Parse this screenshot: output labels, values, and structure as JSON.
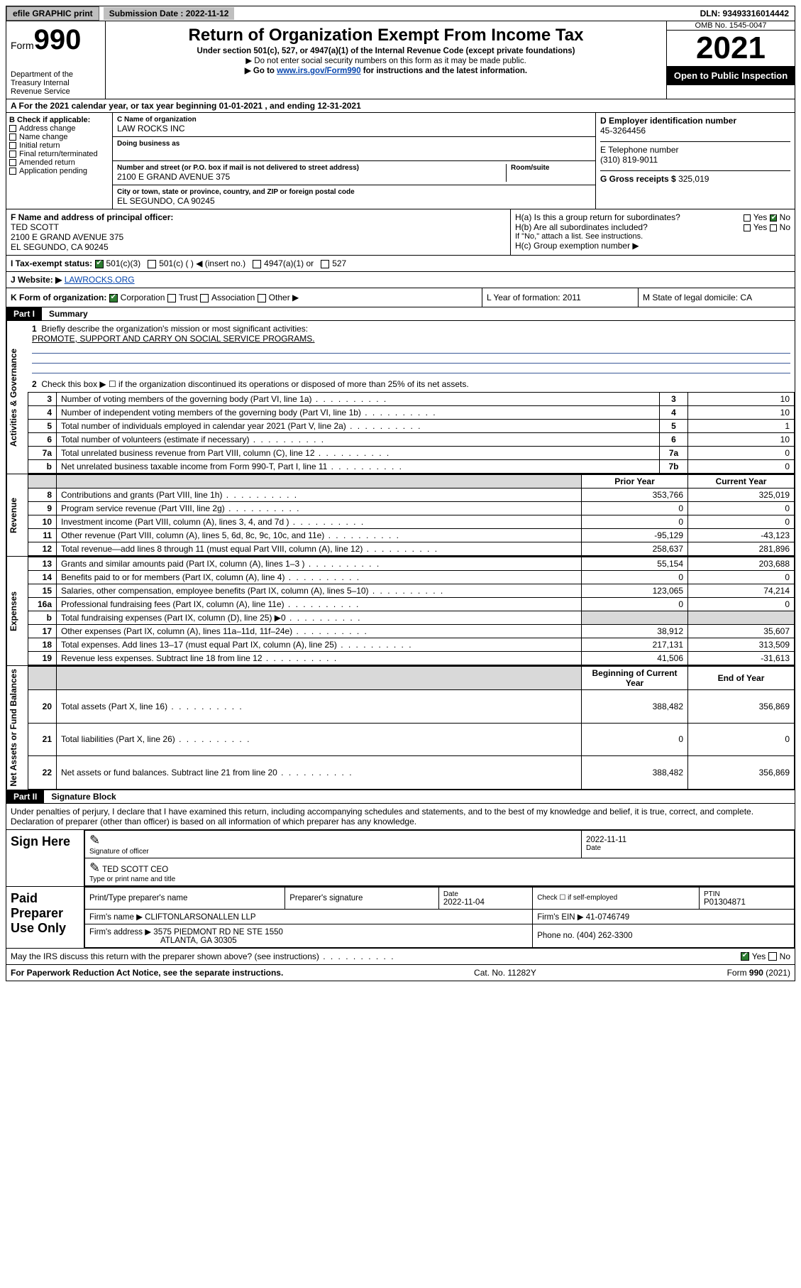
{
  "topbar": {
    "efile": "efile GRAPHIC print",
    "subdate_label": "Submission Date : 2022-11-12",
    "dln": "DLN: 93493316014442"
  },
  "header": {
    "form_label_small": "Form",
    "form_label": "990",
    "dept": "Department of the Treasury Internal Revenue Service",
    "title": "Return of Organization Exempt From Income Tax",
    "sub1": "Under section 501(c), 527, or 4947(a)(1) of the Internal Revenue Code (except private foundations)",
    "sub2": "▶ Do not enter social security numbers on this form as it may be made public.",
    "sub3_pre": "▶ Go to ",
    "sub3_link": "www.irs.gov/Form990",
    "sub3_post": " for instructions and the latest information.",
    "omb": "OMB No. 1545-0047",
    "year": "2021",
    "openpub": "Open to Public Inspection"
  },
  "rowA": "A For the 2021 calendar year, or tax year beginning 01-01-2021   , and ending 12-31-2021",
  "B": {
    "label": "B Check if applicable:",
    "items": [
      "Address change",
      "Name change",
      "Initial return",
      "Final return/terminated",
      "Amended return",
      "Application pending"
    ]
  },
  "C": {
    "name_lbl": "C Name of organization",
    "name": "LAW ROCKS INC",
    "dba_lbl": "Doing business as",
    "street_lbl": "Number and street (or P.O. box if mail is not delivered to street address)",
    "room_lbl": "Room/suite",
    "street": "2100 E GRAND AVENUE 375",
    "city_lbl": "City or town, state or province, country, and ZIP or foreign postal code",
    "city": "EL SEGUNDO, CA  90245"
  },
  "D": {
    "ein_lbl": "D Employer identification number",
    "ein": "45-3264456",
    "phone_lbl": "E Telephone number",
    "phone": "(310) 819-9011",
    "gross_lbl": "G Gross receipts $",
    "gross": "325,019"
  },
  "F": {
    "lbl": "F Name and address of principal officer:",
    "name": "TED SCOTT",
    "addr1": "2100 E GRAND AVENUE 375",
    "addr2": "EL SEGUNDO, CA  90245"
  },
  "H": {
    "a": "H(a)  Is this a group return for subordinates?",
    "a_yes": "Yes",
    "a_no": "No",
    "b": "H(b)  Are all subordinates included?",
    "b_yes": "Yes",
    "b_no": "No",
    "b_note": "If \"No,\" attach a list. See instructions.",
    "c": "H(c)  Group exemption number ▶"
  },
  "I": {
    "lbl": "I     Tax-exempt status:",
    "opts": [
      "501(c)(3)",
      "501(c) (  ) ◀ (insert no.)",
      "4947(a)(1) or",
      "527"
    ]
  },
  "J": {
    "lbl": "J    Website: ▶",
    "val": "LAWROCKS.ORG"
  },
  "K": {
    "lbl": "K Form of organization:",
    "opts": [
      "Corporation",
      "Trust",
      "Association",
      "Other ▶"
    ],
    "L": "L Year of formation: 2011",
    "M": "M State of legal domicile: CA"
  },
  "partI": {
    "hdr": "Part I",
    "ttl": "Summary"
  },
  "summary1": {
    "q1": "Briefly describe the organization's mission or most significant activities:",
    "q1v": "PROMOTE, SUPPORT AND CARRY ON SOCIAL SERVICE PROGRAMS.",
    "q2": "Check this box ▶ ☐  if the organization discontinued its operations or disposed of more than 25% of its net assets."
  },
  "gov_rows": [
    {
      "n": "3",
      "d": "Number of voting members of the governing body (Part VI, line 1a)",
      "b": "3",
      "v": "10"
    },
    {
      "n": "4",
      "d": "Number of independent voting members of the governing body (Part VI, line 1b)",
      "b": "4",
      "v": "10"
    },
    {
      "n": "5",
      "d": "Total number of individuals employed in calendar year 2021 (Part V, line 2a)",
      "b": "5",
      "v": "1"
    },
    {
      "n": "6",
      "d": "Total number of volunteers (estimate if necessary)",
      "b": "6",
      "v": "10"
    },
    {
      "n": "7a",
      "d": "Total unrelated business revenue from Part VIII, column (C), line 12",
      "b": "7a",
      "v": "0"
    },
    {
      "n": "b",
      "d": "Net unrelated business taxable income from Form 990-T, Part I, line 11",
      "b": "7b",
      "v": "0"
    }
  ],
  "sections": {
    "gov": "Activities & Governance",
    "rev": "Revenue",
    "exp": "Expenses",
    "net": "Net Assets or Fund Balances"
  },
  "col_hdrs": {
    "prior": "Prior Year",
    "curr": "Current Year"
  },
  "rev_rows": [
    {
      "n": "8",
      "d": "Contributions and grants (Part VIII, line 1h)",
      "p": "353,766",
      "c": "325,019"
    },
    {
      "n": "9",
      "d": "Program service revenue (Part VIII, line 2g)",
      "p": "0",
      "c": "0"
    },
    {
      "n": "10",
      "d": "Investment income (Part VIII, column (A), lines 3, 4, and 7d )",
      "p": "0",
      "c": "0"
    },
    {
      "n": "11",
      "d": "Other revenue (Part VIII, column (A), lines 5, 6d, 8c, 9c, 10c, and 11e)",
      "p": "-95,129",
      "c": "-43,123"
    },
    {
      "n": "12",
      "d": "Total revenue—add lines 8 through 11 (must equal Part VIII, column (A), line 12)",
      "p": "258,637",
      "c": "281,896"
    }
  ],
  "exp_rows": [
    {
      "n": "13",
      "d": "Grants and similar amounts paid (Part IX, column (A), lines 1–3 )",
      "p": "55,154",
      "c": "203,688"
    },
    {
      "n": "14",
      "d": "Benefits paid to or for members (Part IX, column (A), line 4)",
      "p": "0",
      "c": "0"
    },
    {
      "n": "15",
      "d": "Salaries, other compensation, employee benefits (Part IX, column (A), lines 5–10)",
      "p": "123,065",
      "c": "74,214"
    },
    {
      "n": "16a",
      "d": "Professional fundraising fees (Part IX, column (A), line 11e)",
      "p": "0",
      "c": "0"
    },
    {
      "n": "b",
      "d": "Total fundraising expenses (Part IX, column (D), line 25) ▶0",
      "p": "",
      "c": "",
      "grey": true
    },
    {
      "n": "17",
      "d": "Other expenses (Part IX, column (A), lines 11a–11d, 11f–24e)",
      "p": "38,912",
      "c": "35,607"
    },
    {
      "n": "18",
      "d": "Total expenses. Add lines 13–17 (must equal Part IX, column (A), line 25)",
      "p": "217,131",
      "c": "313,509"
    },
    {
      "n": "19",
      "d": "Revenue less expenses. Subtract line 18 from line 12",
      "p": "41,506",
      "c": "-31,613"
    }
  ],
  "net_hdrs": {
    "beg": "Beginning of Current Year",
    "end": "End of Year"
  },
  "net_rows": [
    {
      "n": "20",
      "d": "Total assets (Part X, line 16)",
      "p": "388,482",
      "c": "356,869"
    },
    {
      "n": "21",
      "d": "Total liabilities (Part X, line 26)",
      "p": "0",
      "c": "0"
    },
    {
      "n": "22",
      "d": "Net assets or fund balances. Subtract line 21 from line 20",
      "p": "388,482",
      "c": "356,869"
    }
  ],
  "partII": {
    "hdr": "Part II",
    "ttl": "Signature Block"
  },
  "perjury": "Under penalties of perjury, I declare that I have examined this return, including accompanying schedules and statements, and to the best of my knowledge and belief, it is true, correct, and complete. Declaration of preparer (other than officer) is based on all information of which preparer has any knowledge.",
  "sign": {
    "lbl": "Sign Here",
    "sig_lbl": "Signature of officer",
    "date_lbl": "Date",
    "date": "2022-11-11",
    "name": "TED SCOTT CEO",
    "name_lbl": "Type or print name and title"
  },
  "prep": {
    "lbl": "Paid Preparer Use Only",
    "h1": "Print/Type preparer's name",
    "h2": "Preparer's signature",
    "h3": "Date",
    "h3v": "2022-11-04",
    "h4": "Check ☐ if self-employed",
    "h5": "PTIN",
    "h5v": "P01304871",
    "firm_lbl": "Firm's name     ▶",
    "firm": "CLIFTONLARSONALLEN LLP",
    "ein_lbl": "Firm's EIN ▶",
    "ein": "41-0746749",
    "addr_lbl": "Firm's address ▶",
    "addr1": "3575 PIEDMONT RD NE STE 1550",
    "addr2": "ATLANTA, GA  30305",
    "phone_lbl": "Phone no.",
    "phone": "(404) 262-3300"
  },
  "discuss": {
    "q": "May the IRS discuss this return with the preparer shown above? (see instructions)",
    "yes": "Yes",
    "no": "No"
  },
  "footer": {
    "pra": "For Paperwork Reduction Act Notice, see the separate instructions.",
    "cat": "Cat. No. 11282Y",
    "form": "Form 990 (2021)"
  }
}
